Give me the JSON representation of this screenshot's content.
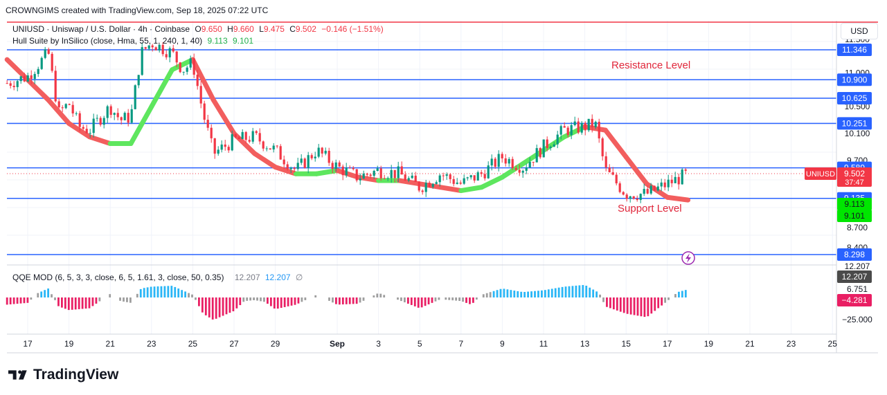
{
  "header": {
    "credit": "CROWNGIMS created with TradingView.com, Sep 18, 2025 07:22 UTC"
  },
  "legend_main": {
    "symbol": "UNIUSD · Uniswap / U.S. Dollar · 4h · Coinbase",
    "o_label": "O",
    "o_value": "9.650",
    "h_label": "H",
    "h_value": "9.660",
    "l_label": "L",
    "l_value": "9.475",
    "c_label": "C",
    "c_value": "9.502",
    "change": "−0.146 (−1.51%)"
  },
  "legend_hull": {
    "name": "Hull Suite by InSilico (close, Hma, 55, 1, 240, 1, 40)",
    "v1": "9.113",
    "v2": "9.101"
  },
  "legend_qqe": {
    "name": "QQE MOD (6, 5, 3, 3, close, 6, 5, 1.61, 3, close, 50, 0.35)",
    "v1": "12.207",
    "v2": "12.207",
    "symbol": "∅"
  },
  "annotations": {
    "resistance": "Resistance Level",
    "support": "Support Level"
  },
  "currency_button": "USD",
  "footer": {
    "brand": "TradingView"
  },
  "colors": {
    "up": "#089981",
    "down": "#f23645",
    "level_line": "#2962ff",
    "top_line": "#f23645",
    "hull_up": "#5ee65e",
    "hull_down": "#f25e5e",
    "qqe_pos": "#29b6f6",
    "qqe_neg": "#e91e63",
    "qqe_neutral": "#9e9e9e"
  },
  "chart_data": {
    "type": "candlestick",
    "price_axis_ticks": [
      "11.500",
      "11.000",
      "10.500",
      "10.100",
      "9.700",
      "8.700",
      "8.400"
    ],
    "price_labels": [
      {
        "value": "11.346",
        "kind": "level"
      },
      {
        "value": "10.900",
        "kind": "level"
      },
      {
        "value": "10.625",
        "kind": "level"
      },
      {
        "value": "10.251",
        "kind": "level"
      },
      {
        "value": "9.589",
        "kind": "level"
      },
      {
        "value": "9.135",
        "kind": "level"
      },
      {
        "value": "8.298",
        "kind": "level"
      },
      {
        "value": "9.113",
        "kind": "hull1"
      },
      {
        "value": "9.101",
        "kind": "hull2"
      }
    ],
    "current_price": {
      "symbol": "UNIUSD",
      "value": "9.502",
      "countdown": "37:47"
    },
    "horizontal_levels": [
      11.346,
      10.9,
      10.625,
      10.251,
      9.589,
      9.135,
      8.298
    ],
    "x_axis_labels": [
      "17",
      "19",
      "21",
      "23",
      "25",
      "27",
      "29",
      "Sep",
      "3",
      "5",
      "7",
      "9",
      "11",
      "13",
      "15",
      "17",
      "19",
      "21",
      "23",
      "25"
    ],
    "close_path": [
      [
        "Aug 16",
        10.85
      ],
      [
        "Aug 17",
        10.95
      ],
      [
        "Aug 18",
        11.3
      ],
      [
        "Aug 18.5",
        10.4
      ],
      [
        "Aug 19",
        10.55
      ],
      [
        "Aug 19.5",
        10.2
      ],
      [
        "Aug 20",
        10.15
      ],
      [
        "Aug 21",
        10.5
      ],
      [
        "Aug 21.5",
        10.3
      ],
      [
        "Aug 22",
        10.35
      ],
      [
        "Aug 22.5",
        11.3
      ],
      [
        "Aug 23",
        11.45
      ],
      [
        "Aug 24",
        11.3
      ],
      [
        "Aug 24.5",
        11.05
      ],
      [
        "Aug 25",
        11.15
      ],
      [
        "Aug 25.5",
        10.4
      ],
      [
        "Aug 26",
        9.8
      ],
      [
        "Aug 27",
        10.0
      ],
      [
        "Aug 28",
        10.05
      ],
      [
        "Aug 29",
        9.85
      ],
      [
        "Aug 30",
        9.55
      ],
      [
        "Aug 31",
        9.85
      ],
      [
        "Sep 1",
        9.6
      ],
      [
        "Sep 2",
        9.45
      ],
      [
        "Sep 3",
        9.55
      ],
      [
        "Sep 4",
        9.5
      ],
      [
        "Sep 5",
        9.3
      ],
      [
        "Sep 6",
        9.5
      ],
      [
        "Sep 7",
        9.35
      ],
      [
        "Sep 8",
        9.5
      ],
      [
        "Sep 9",
        9.75
      ],
      [
        "Sep 10",
        9.6
      ],
      [
        "Sep 11",
        9.9
      ],
      [
        "Sep 12",
        10.15
      ],
      [
        "Sep 13",
        10.2
      ],
      [
        "Sep 13.5",
        10.25
      ],
      [
        "Sep 14",
        9.55
      ],
      [
        "Sep 15",
        9.2
      ],
      [
        "Sep 16",
        9.2
      ],
      [
        "Sep 17",
        9.35
      ],
      [
        "Sep 18",
        9.5
      ]
    ],
    "hull_line": [
      [
        "Aug 16",
        11.2
      ],
      [
        "Aug 18",
        10.6
      ],
      [
        "Aug 19",
        10.25
      ],
      [
        "Aug 20",
        10.05
      ],
      [
        "Aug 21",
        9.95
      ],
      [
        "Aug 22",
        9.95
      ],
      [
        "Aug 23",
        10.5
      ],
      [
        "Aug 24",
        11.05
      ],
      [
        "Aug 25",
        11.2
      ],
      [
        "Aug 26",
        10.6
      ],
      [
        "Aug 27",
        10.1
      ],
      [
        "Aug 28",
        9.8
      ],
      [
        "Aug 29",
        9.6
      ],
      [
        "Aug 30",
        9.5
      ],
      [
        "Aug 31",
        9.5
      ],
      [
        "Sep 1",
        9.55
      ],
      [
        "Sep 2",
        9.45
      ],
      [
        "Sep 3",
        9.4
      ],
      [
        "Sep 4",
        9.4
      ],
      [
        "Sep 5",
        9.35
      ],
      [
        "Sep 6",
        9.3
      ],
      [
        "Sep 7",
        9.25
      ],
      [
        "Sep 8",
        9.3
      ],
      [
        "Sep 9",
        9.45
      ],
      [
        "Sep 10",
        9.65
      ],
      [
        "Sep 11",
        9.85
      ],
      [
        "Sep 12",
        10.05
      ],
      [
        "Sep 13",
        10.2
      ],
      [
        "Sep 14",
        10.15
      ],
      [
        "Sep 15",
        9.75
      ],
      [
        "Sep 16",
        9.35
      ],
      [
        "Sep 17",
        9.15
      ],
      [
        "Sep 18",
        9.11
      ]
    ],
    "qqe_axis_ticks": [
      "12.207",
      "6.751",
      "−25.000"
    ],
    "qqe_labels": [
      {
        "value": "12.207",
        "kind": "dark"
      },
      {
        "value": "−4.281",
        "kind": "neg"
      }
    ],
    "qqe_histogram": [
      [
        "Aug 16",
        -8
      ],
      [
        "Aug 17",
        -6
      ],
      [
        "Aug 17.5",
        5
      ],
      [
        "Aug 18",
        10
      ],
      [
        "Aug 18.5",
        -10
      ],
      [
        "Aug 19",
        -14
      ],
      [
        "Aug 20",
        -12
      ],
      [
        "Aug 21",
        4
      ],
      [
        "Aug 21.5",
        -4
      ],
      [
        "Aug 22",
        -6
      ],
      [
        "Aug 22.5",
        10
      ],
      [
        "Aug 23",
        12
      ],
      [
        "Aug 24",
        13
      ],
      [
        "Aug 25",
        3
      ],
      [
        "Aug 25.5",
        -18
      ],
      [
        "Aug 26",
        -25
      ],
      [
        "Aug 27",
        -15
      ],
      [
        "Aug 27.5",
        -4
      ],
      [
        "Aug 28",
        -3
      ],
      [
        "Aug 28.5",
        -5
      ],
      [
        "Aug 29",
        -13
      ],
      [
        "Aug 30",
        -8
      ],
      [
        "Aug 31",
        3
      ],
      [
        "Sep 1",
        -8
      ],
      [
        "Sep 2",
        -7
      ],
      [
        "Sep 3",
        5
      ],
      [
        "Sep 4",
        -3
      ],
      [
        "Sep 5",
        -12
      ],
      [
        "Sep 6",
        -2
      ],
      [
        "Sep 7",
        -4
      ],
      [
        "Sep 7.5",
        -8
      ],
      [
        "Sep 8",
        3
      ],
      [
        "Sep 9",
        10
      ],
      [
        "Sep 10",
        6
      ],
      [
        "Sep 11",
        8
      ],
      [
        "Sep 12",
        12
      ],
      [
        "Sep 13",
        14
      ],
      [
        "Sep 13.7",
        5
      ],
      [
        "Sep 14",
        -10
      ],
      [
        "Sep 15",
        -18
      ],
      [
        "Sep 16",
        -22
      ],
      [
        "Sep 17",
        -4
      ],
      [
        "Sep 17.5",
        6
      ],
      [
        "Sep 18",
        9
      ]
    ]
  }
}
